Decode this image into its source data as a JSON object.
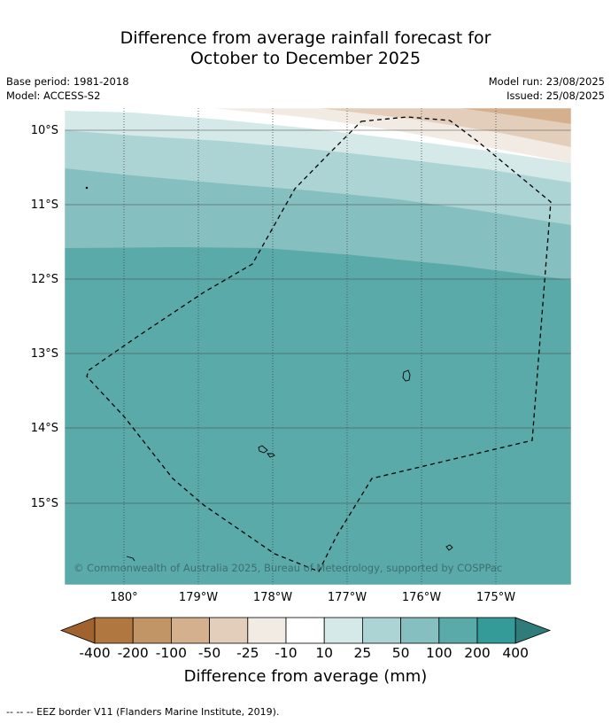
{
  "title_line1": "Difference from average rainfall forecast for",
  "title_line2": "October to December 2025",
  "base_period": "Base period: 1981-2018",
  "model": "Model: ACCESS-S2",
  "model_run": "Model run: 23/08/2025",
  "issued": "Issued: 25/08/2025",
  "copyright": "© Commonwealth of Australia 2025, Bureau of Meteorology, supported by COSPPac",
  "lat_labels": [
    "10°S",
    "11°S",
    "12°S",
    "13°S",
    "14°S",
    "15°S"
  ],
  "lon_labels": [
    "180°",
    "179°W",
    "178°W",
    "177°W",
    "176°W",
    "175°W"
  ],
  "colorbar": {
    "title": "Difference from average (mm)",
    "labels": [
      "-400",
      "-200",
      "-100",
      "-50",
      "-25",
      "-10",
      "10",
      "25",
      "50",
      "100",
      "200",
      "400"
    ],
    "colors": [
      "#a0622e",
      "#b07840",
      "#c29566",
      "#d4b08e",
      "#e3cebb",
      "#f1ebe3",
      "#ffffff",
      "#d5e9e9",
      "#add4d4",
      "#86bfbf",
      "#5aaaaa",
      "#349b99",
      "#2f7c7b"
    ]
  },
  "footer": "--  --  -- EEZ border V11 (Flanders Marine Institute, 2019)."
}
